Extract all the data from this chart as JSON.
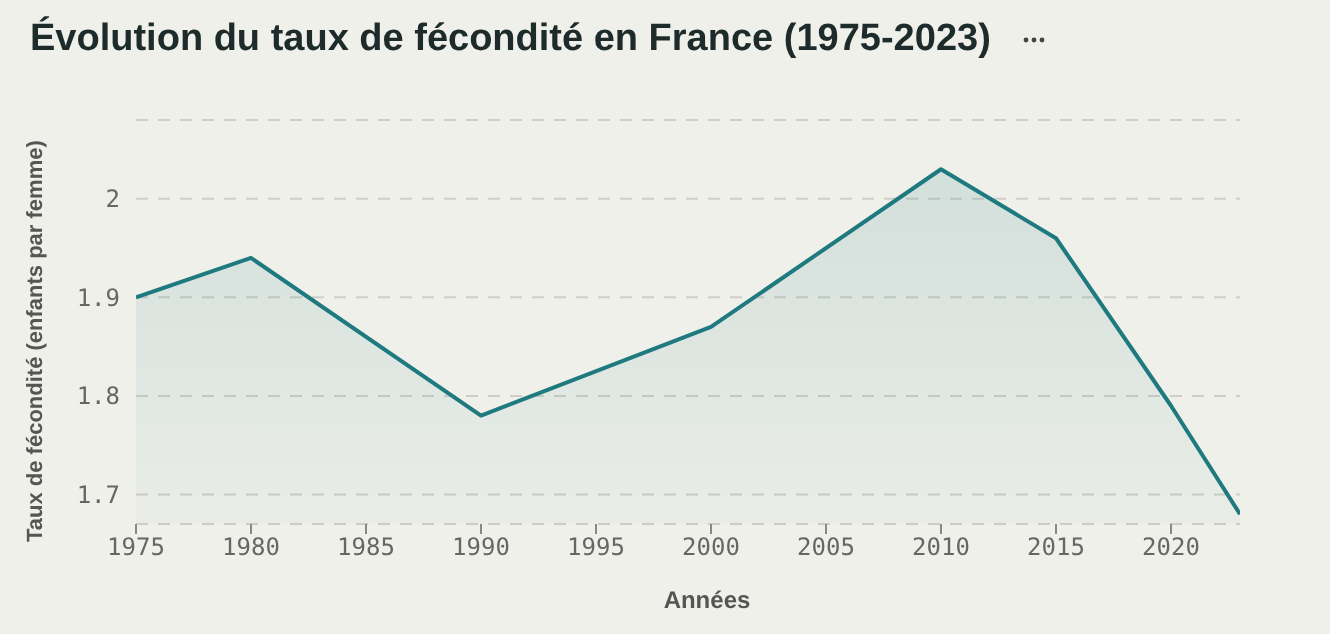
{
  "chart_data": {
    "type": "area",
    "title": "Évolution du taux de fécondité en France (1975-2023)",
    "xlabel": "Années",
    "ylabel": "Taux de fécondité (enfants par femme)",
    "x": [
      1975,
      1980,
      1990,
      2000,
      2010,
      2015,
      2020,
      2023
    ],
    "values": [
      1.9,
      1.94,
      1.78,
      1.87,
      2.03,
      1.96,
      1.79,
      1.68
    ],
    "color": "#1f7a80",
    "xlim": [
      1975,
      2023
    ],
    "xticks": [
      1975,
      1980,
      1985,
      1990,
      1995,
      2000,
      2005,
      2010,
      2015,
      2020
    ],
    "ylim": [
      1.67,
      2.08
    ],
    "yticks": [
      1.7,
      1.8,
      1.9,
      2
    ],
    "grid": "y",
    "marker": "none",
    "line_style": "solid"
  }
}
